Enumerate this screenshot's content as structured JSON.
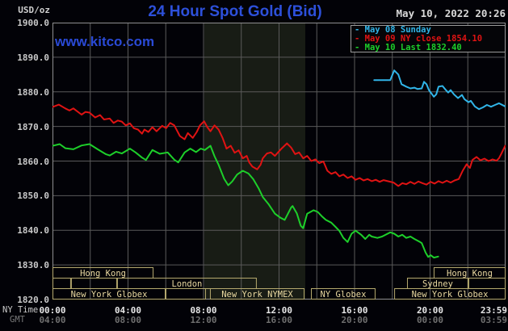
{
  "header": {
    "unit": "USD/oz",
    "title": "24 Hour Spot Gold (Bid)",
    "datetime": "May 10, 2022 20:26",
    "watermark": "www.kitco.com"
  },
  "legend": {
    "items": [
      {
        "text": "- May 08 Sunday",
        "color": "#31b5e8"
      },
      {
        "text": "- May 09 NY close 1854.10",
        "color": "#e01313"
      },
      {
        "text": "- May 10 Last 1832.40",
        "color": "#1dcf2a"
      }
    ]
  },
  "axis": {
    "ny_label": "NY Time",
    "gmt_label": "GMT"
  },
  "colors": {
    "background": "#020207",
    "title_blue": "#2d50da",
    "watermark_blue": "#2a4ad6",
    "grid": "#5a5a5a",
    "border": "#8f8f8f",
    "band": "#181c15",
    "session_border": "#b5a96e",
    "session_text": "#ead9a0",
    "series_may08": "#31b5e8",
    "series_may09": "#e01313",
    "series_may10": "#1dcf2a"
  },
  "chart_data": {
    "type": "line",
    "title": "24 Hour Spot Gold (Bid)",
    "xlabel": "NY Time / GMT",
    "ylabel": "USD/oz",
    "x_unit": "hours_ny_time",
    "xlim": [
      0,
      24
    ],
    "ylim": [
      1820,
      1900
    ],
    "grid": {
      "x_step_hours": 2,
      "y_step": 10
    },
    "y_ticks": [
      "1900.0",
      "1890.0",
      "1880.0",
      "1870.0",
      "1860.0",
      "1850.0",
      "1840.0",
      "1830.0",
      "1820.0"
    ],
    "y_tick_values": [
      1900,
      1890,
      1880,
      1870,
      1860,
      1850,
      1840,
      1830,
      1820
    ],
    "x_ticks": {
      "hours": [
        0,
        4,
        8,
        12,
        16,
        20,
        23.983
      ],
      "ny": [
        "00:00",
        "04:00",
        "08:00",
        "12:00",
        "16:00",
        "20:00",
        "23:59"
      ],
      "gmt": [
        "04:00",
        "08:00",
        "12:00",
        "16:00",
        "20:00",
        "00:00",
        "03:59"
      ]
    },
    "highlight_band": {
      "start": 8.04,
      "end": 13.39
    },
    "series": [
      {
        "name": "May 08 Sunday",
        "color": "#31b5e8",
        "points": [
          [
            17.04,
            1883.4
          ],
          [
            17.89,
            1883.4
          ],
          [
            18.1,
            1886.2
          ],
          [
            18.32,
            1885.0
          ],
          [
            18.49,
            1882.2
          ],
          [
            18.74,
            1881.5
          ],
          [
            18.96,
            1881.0
          ],
          [
            19.17,
            1881.2
          ],
          [
            19.34,
            1880.8
          ],
          [
            19.56,
            1881.0
          ],
          [
            19.68,
            1882.9
          ],
          [
            19.81,
            1882.2
          ],
          [
            19.94,
            1880.5
          ],
          [
            20.2,
            1878.6
          ],
          [
            20.33,
            1879.3
          ],
          [
            20.45,
            1881.5
          ],
          [
            20.66,
            1881.7
          ],
          [
            20.84,
            1880.5
          ],
          [
            20.96,
            1879.8
          ],
          [
            21.09,
            1880.5
          ],
          [
            21.26,
            1879.3
          ],
          [
            21.48,
            1878.2
          ],
          [
            21.69,
            1879.1
          ],
          [
            21.82,
            1877.9
          ],
          [
            22.03,
            1877.0
          ],
          [
            22.16,
            1877.4
          ],
          [
            22.37,
            1875.8
          ],
          [
            22.59,
            1875.0
          ],
          [
            22.8,
            1875.5
          ],
          [
            23.01,
            1876.2
          ],
          [
            23.23,
            1875.7
          ],
          [
            23.44,
            1876.2
          ],
          [
            23.65,
            1876.7
          ],
          [
            23.98,
            1875.8
          ]
        ]
      },
      {
        "name": "May 09 NY close 1854.10",
        "color": "#e01313",
        "close": 1854.1,
        "points": [
          [
            0.0,
            1875.6
          ],
          [
            0.34,
            1876.3
          ],
          [
            0.68,
            1875.2
          ],
          [
            0.9,
            1874.6
          ],
          [
            1.11,
            1875.2
          ],
          [
            1.54,
            1873.4
          ],
          [
            1.75,
            1874.2
          ],
          [
            1.96,
            1874.0
          ],
          [
            2.26,
            1872.6
          ],
          [
            2.52,
            1873.3
          ],
          [
            2.73,
            1872.0
          ],
          [
            3.03,
            1872.3
          ],
          [
            3.24,
            1871.0
          ],
          [
            3.46,
            1871.7
          ],
          [
            3.67,
            1871.4
          ],
          [
            3.88,
            1870.3
          ],
          [
            4.1,
            1870.9
          ],
          [
            4.31,
            1869.5
          ],
          [
            4.53,
            1869.1
          ],
          [
            4.74,
            1867.9
          ],
          [
            4.87,
            1869.1
          ],
          [
            5.08,
            1868.4
          ],
          [
            5.29,
            1869.8
          ],
          [
            5.51,
            1868.6
          ],
          [
            5.81,
            1870.2
          ],
          [
            6.02,
            1869.5
          ],
          [
            6.23,
            1871.0
          ],
          [
            6.45,
            1870.3
          ],
          [
            6.75,
            1867.2
          ],
          [
            7.0,
            1866.3
          ],
          [
            7.17,
            1868.1
          ],
          [
            7.43,
            1866.7
          ],
          [
            7.64,
            1868.4
          ],
          [
            7.81,
            1870.3
          ],
          [
            8.03,
            1871.5
          ],
          [
            8.2,
            1869.8
          ],
          [
            8.37,
            1868.6
          ],
          [
            8.58,
            1870.3
          ],
          [
            8.8,
            1869.1
          ],
          [
            9.01,
            1866.7
          ],
          [
            9.22,
            1863.6
          ],
          [
            9.44,
            1864.4
          ],
          [
            9.65,
            1862.4
          ],
          [
            9.86,
            1863.1
          ],
          [
            10.08,
            1860.8
          ],
          [
            10.29,
            1861.5
          ],
          [
            10.42,
            1859.6
          ],
          [
            10.59,
            1858.4
          ],
          [
            10.84,
            1857.6
          ],
          [
            11.02,
            1858.9
          ],
          [
            11.14,
            1860.8
          ],
          [
            11.36,
            1862.2
          ],
          [
            11.57,
            1862.5
          ],
          [
            11.78,
            1861.5
          ],
          [
            12.13,
            1863.6
          ],
          [
            12.42,
            1865.1
          ],
          [
            12.64,
            1863.9
          ],
          [
            12.85,
            1862.0
          ],
          [
            13.06,
            1862.5
          ],
          [
            13.28,
            1860.8
          ],
          [
            13.49,
            1861.5
          ],
          [
            13.71,
            1860.0
          ],
          [
            13.92,
            1860.5
          ],
          [
            14.13,
            1859.4
          ],
          [
            14.35,
            1859.9
          ],
          [
            14.56,
            1857.2
          ],
          [
            14.77,
            1856.3
          ],
          [
            14.99,
            1856.8
          ],
          [
            15.2,
            1855.6
          ],
          [
            15.41,
            1856.1
          ],
          [
            15.63,
            1855.1
          ],
          [
            15.84,
            1855.6
          ],
          [
            16.05,
            1854.6
          ],
          [
            16.27,
            1855.1
          ],
          [
            16.48,
            1854.4
          ],
          [
            16.69,
            1854.8
          ],
          [
            16.91,
            1854.2
          ],
          [
            17.12,
            1854.6
          ],
          [
            17.33,
            1854.0
          ],
          [
            17.54,
            1854.5
          ],
          [
            17.76,
            1854.2
          ],
          [
            18.06,
            1853.8
          ],
          [
            18.32,
            1852.8
          ],
          [
            18.53,
            1853.6
          ],
          [
            18.74,
            1853.3
          ],
          [
            18.96,
            1854.0
          ],
          [
            19.17,
            1853.4
          ],
          [
            19.38,
            1854.1
          ],
          [
            19.6,
            1853.6
          ],
          [
            19.81,
            1853.2
          ],
          [
            20.02,
            1854.0
          ],
          [
            20.24,
            1853.5
          ],
          [
            20.45,
            1854.2
          ],
          [
            20.66,
            1853.7
          ],
          [
            20.88,
            1854.3
          ],
          [
            21.09,
            1853.8
          ],
          [
            21.3,
            1854.4
          ],
          [
            21.52,
            1854.8
          ],
          [
            21.73,
            1857.2
          ],
          [
            21.94,
            1859.1
          ],
          [
            22.11,
            1858.0
          ],
          [
            22.24,
            1860.3
          ],
          [
            22.46,
            1861.2
          ],
          [
            22.67,
            1860.2
          ],
          [
            22.88,
            1860.7
          ],
          [
            23.1,
            1860.0
          ],
          [
            23.31,
            1860.5
          ],
          [
            23.52,
            1860.1
          ],
          [
            23.65,
            1860.8
          ],
          [
            23.78,
            1862.2
          ],
          [
            23.98,
            1864.4
          ]
        ]
      },
      {
        "name": "May 10 Last 1832.40",
        "color": "#1dcf2a",
        "last": 1832.4,
        "points": [
          [
            0.0,
            1864.4
          ],
          [
            0.38,
            1864.9
          ],
          [
            0.68,
            1863.7
          ],
          [
            1.11,
            1863.4
          ],
          [
            1.54,
            1864.5
          ],
          [
            1.96,
            1864.9
          ],
          [
            2.39,
            1863.4
          ],
          [
            2.82,
            1862.0
          ],
          [
            3.03,
            1861.6
          ],
          [
            3.37,
            1862.7
          ],
          [
            3.67,
            1862.2
          ],
          [
            4.1,
            1863.6
          ],
          [
            4.4,
            1862.5
          ],
          [
            4.74,
            1861.0
          ],
          [
            4.95,
            1860.3
          ],
          [
            5.29,
            1863.2
          ],
          [
            5.68,
            1862.1
          ],
          [
            6.1,
            1862.5
          ],
          [
            6.45,
            1860.4
          ],
          [
            6.66,
            1859.6
          ],
          [
            7.0,
            1862.5
          ],
          [
            7.3,
            1863.6
          ],
          [
            7.6,
            1862.6
          ],
          [
            7.85,
            1863.6
          ],
          [
            8.07,
            1863.2
          ],
          [
            8.37,
            1864.4
          ],
          [
            8.58,
            1861.4
          ],
          [
            8.8,
            1858.9
          ],
          [
            9.09,
            1854.9
          ],
          [
            9.31,
            1853.0
          ],
          [
            9.52,
            1854.1
          ],
          [
            9.78,
            1856.1
          ],
          [
            10.08,
            1857.2
          ],
          [
            10.38,
            1856.4
          ],
          [
            10.63,
            1854.8
          ],
          [
            10.93,
            1852.0
          ],
          [
            11.14,
            1849.6
          ],
          [
            11.44,
            1847.6
          ],
          [
            11.78,
            1844.8
          ],
          [
            12.08,
            1843.6
          ],
          [
            12.3,
            1843.0
          ],
          [
            12.64,
            1846.6
          ],
          [
            12.72,
            1847.0
          ],
          [
            12.94,
            1844.9
          ],
          [
            13.15,
            1841.3
          ],
          [
            13.28,
            1840.6
          ],
          [
            13.49,
            1844.8
          ],
          [
            13.83,
            1845.8
          ],
          [
            14.05,
            1845.3
          ],
          [
            14.26,
            1844.1
          ],
          [
            14.48,
            1843.0
          ],
          [
            14.77,
            1842.2
          ],
          [
            14.99,
            1841.0
          ],
          [
            15.2,
            1839.8
          ],
          [
            15.41,
            1837.8
          ],
          [
            15.63,
            1836.6
          ],
          [
            15.84,
            1839.0
          ],
          [
            16.05,
            1839.9
          ],
          [
            16.35,
            1838.7
          ],
          [
            16.57,
            1837.5
          ],
          [
            16.78,
            1838.7
          ],
          [
            16.91,
            1838.2
          ],
          [
            17.21,
            1837.8
          ],
          [
            17.46,
            1838.2
          ],
          [
            17.89,
            1839.4
          ],
          [
            18.1,
            1839.0
          ],
          [
            18.32,
            1838.2
          ],
          [
            18.53,
            1838.7
          ],
          [
            18.74,
            1837.8
          ],
          [
            18.96,
            1838.2
          ],
          [
            19.17,
            1837.5
          ],
          [
            19.47,
            1836.6
          ],
          [
            19.56,
            1836.3
          ],
          [
            19.77,
            1833.5
          ],
          [
            19.9,
            1832.3
          ],
          [
            20.03,
            1832.8
          ],
          [
            20.2,
            1832.1
          ],
          [
            20.43,
            1832.4
          ]
        ]
      }
    ],
    "sessions": [
      {
        "row": 1,
        "boxes": [
          {
            "label": "Hong Kong",
            "start": 0,
            "end": 5.35
          },
          {
            "label": "Hong Kong",
            "start": 20.19,
            "end": 24
          }
        ]
      },
      {
        "row": 2,
        "boxes": [
          {
            "label": "",
            "start": 0,
            "end": 0.98
          },
          {
            "label": "",
            "start": 0.98,
            "end": 3.42
          },
          {
            "label": "London",
            "start": 3.42,
            "end": 10.82
          },
          {
            "label": "Sydney",
            "start": 18.78,
            "end": 22.03
          },
          {
            "label": "",
            "start": 22.03,
            "end": 24
          }
        ]
      },
      {
        "row": 3,
        "boxes": [
          {
            "label": "New York Globex",
            "start": 0,
            "end": 5.99
          },
          {
            "label": "",
            "start": 5.99,
            "end": 8.13
          },
          {
            "label": "New York NYMEX",
            "start": 8.34,
            "end": 13.35
          },
          {
            "label": "NY Globex",
            "start": 13.69,
            "end": 17.11
          },
          {
            "label": "New York Globex",
            "start": 18.1,
            "end": 24
          }
        ]
      }
    ]
  }
}
